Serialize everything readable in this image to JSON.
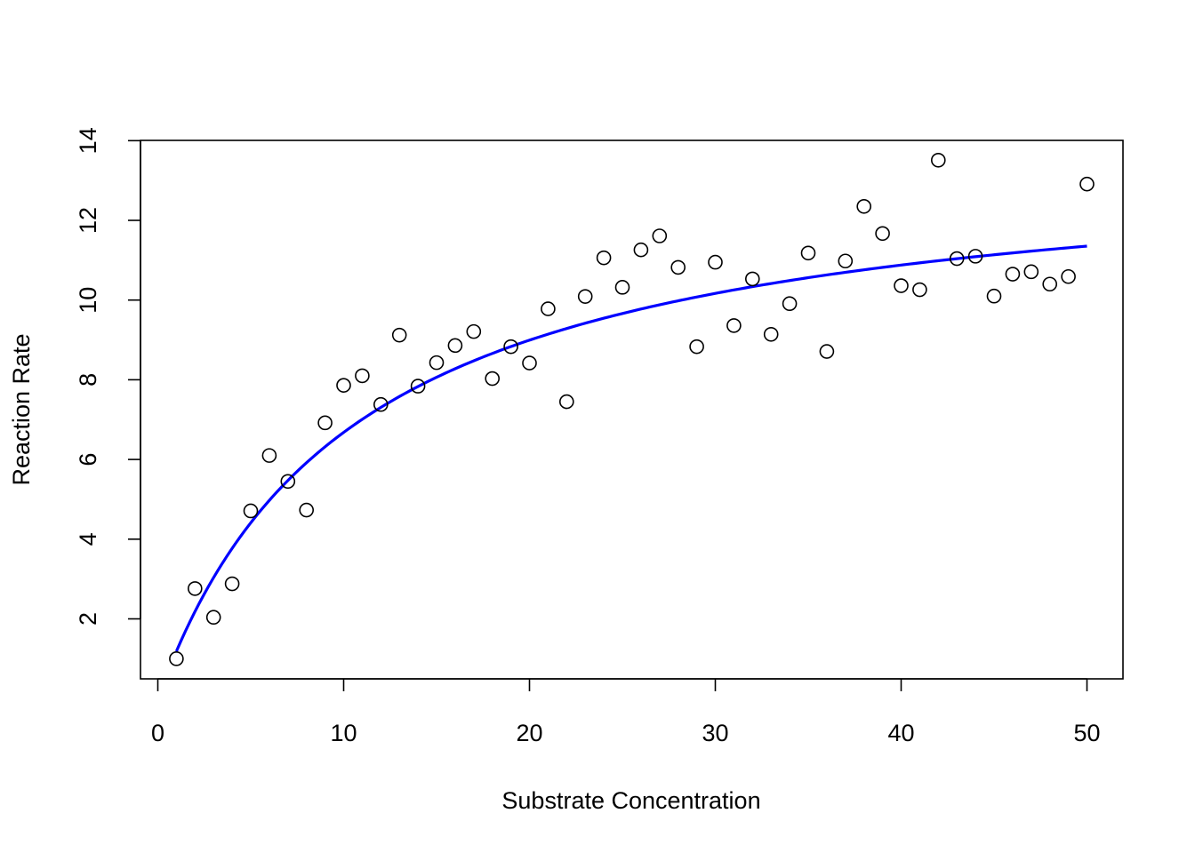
{
  "chart_data": {
    "type": "scatter",
    "title": "",
    "xlabel": "Substrate Concentration",
    "ylabel": "Reaction Rate",
    "xlim": [
      0,
      52
    ],
    "ylim": [
      0.5,
      14
    ],
    "xticks": [
      0,
      10,
      20,
      30,
      40,
      50
    ],
    "yticks": [
      2,
      4,
      6,
      8,
      10,
      12,
      14
    ],
    "x_tick_labels": [
      "0",
      "10",
      "20",
      "30",
      "40",
      "50"
    ],
    "y_tick_labels": [
      "2",
      "4",
      "6",
      "8",
      "10",
      "12",
      "14"
    ],
    "grid": false,
    "legend": false,
    "series": [
      {
        "type": "scatter",
        "marker": "open-circle",
        "color": "#000000",
        "x": [
          1,
          2,
          3,
          4,
          5,
          6,
          7,
          8,
          9,
          10,
          11,
          12,
          13,
          14,
          15,
          16,
          17,
          18,
          19,
          20,
          21,
          22,
          23,
          24,
          25,
          26,
          27,
          28,
          29,
          30,
          31,
          32,
          33,
          34,
          35,
          36,
          37,
          38,
          39,
          40,
          41,
          42,
          43,
          44,
          45,
          46,
          47,
          48,
          49,
          50
        ],
        "y": [
          1.0,
          2.76,
          2.04,
          2.88,
          4.71,
          6.1,
          5.45,
          4.73,
          6.92,
          7.86,
          8.1,
          7.38,
          9.12,
          7.84,
          8.43,
          8.86,
          9.21,
          8.03,
          8.83,
          8.42,
          9.78,
          7.45,
          10.09,
          11.06,
          10.32,
          11.26,
          11.61,
          10.82,
          8.83,
          10.95,
          9.36,
          10.53,
          9.14,
          9.91,
          11.18,
          8.71,
          10.98,
          12.35,
          11.67,
          10.36,
          10.26,
          13.51,
          11.04,
          11.1,
          10.1,
          10.65,
          10.71,
          10.4,
          10.59,
          12.91
        ]
      },
      {
        "type": "line",
        "color": "#0000ff",
        "model": "michaelis-menten",
        "vmax": 13.76,
        "km": 10.6,
        "x_range": [
          1,
          50
        ]
      }
    ]
  }
}
